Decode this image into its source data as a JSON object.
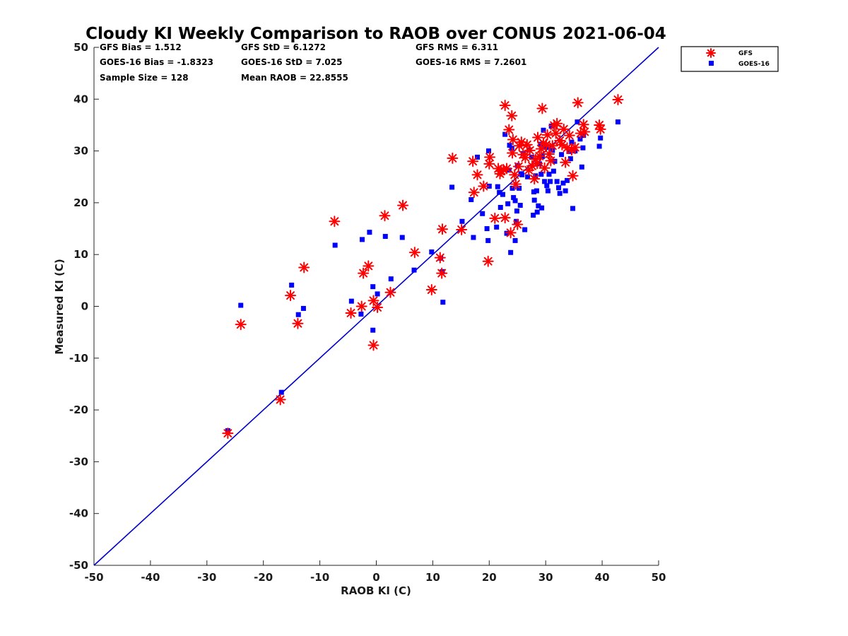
{
  "chart_data": {
    "type": "scatter",
    "title": "Cloudy KI Weekly Comparison to RAOB over CONUS 2021-06-04",
    "xlabel": "RAOB KI (C)",
    "ylabel": "Measured KI (C)",
    "xlim": [
      -50,
      50
    ],
    "ylim": [
      -50,
      50
    ],
    "xticks": [
      "-50",
      "-40",
      "-30",
      "-20",
      "-10",
      "0",
      "10",
      "20",
      "30",
      "40",
      "50"
    ],
    "yticks": [
      "-50",
      "-40",
      "-30",
      "-20",
      "-10",
      "0",
      "10",
      "20",
      "30",
      "40",
      "50"
    ],
    "grid": false,
    "legend_position": "outside top-right",
    "reference_line": "y = x",
    "colors": {
      "gfs": "#ff0000",
      "goes": "#0000ff",
      "line": "#0000cc"
    },
    "stats": {
      "gfs_bias": "GFS Bias = 1.512",
      "gfs_std": "GFS StD = 6.1272",
      "gfs_rms": "GFS RMS = 6.311",
      "goes_bias": "GOES-16 Bias = -1.8323",
      "goes_std": "GOES-16 StD = 7.025",
      "goes_rms": "GOES-16 RMS = 7.2601",
      "sample_size": "Sample Size = 128",
      "mean_raob": "Mean RAOB = 22.8555"
    },
    "series": [
      {
        "name": "GFS",
        "marker": "asterisk",
        "color": "#ff0000",
        "points": [
          [
            -26.3,
            -24.5
          ],
          [
            -24,
            -3.5
          ],
          [
            -17,
            -18
          ],
          [
            -15.2,
            2.1
          ],
          [
            -13.9,
            -3.3
          ],
          [
            -12.8,
            7.5
          ],
          [
            -7.4,
            16.4
          ],
          [
            -4.5,
            -1.3
          ],
          [
            -2.6,
            0
          ],
          [
            -2.3,
            6.4
          ],
          [
            -1.4,
            7.8
          ],
          [
            -0.5,
            1.1
          ],
          [
            -0.5,
            -7.5
          ],
          [
            0.2,
            -0.2
          ],
          [
            1.5,
            17.5
          ],
          [
            2.5,
            2.7
          ],
          [
            4.7,
            19.5
          ],
          [
            6.8,
            10.4
          ],
          [
            9.8,
            3.2
          ],
          [
            11.3,
            9.4
          ],
          [
            11.6,
            6.4
          ],
          [
            11.7,
            14.9
          ],
          [
            15.1,
            14.8
          ],
          [
            13.5,
            28.6
          ],
          [
            17.1,
            28
          ],
          [
            17.3,
            22
          ],
          [
            17.9,
            25.4
          ],
          [
            19,
            23.2
          ],
          [
            20,
            27.5
          ],
          [
            20.1,
            28.8
          ],
          [
            19.8,
            8.7
          ],
          [
            21,
            17
          ],
          [
            21.6,
            26.6
          ],
          [
            21.9,
            25.6
          ],
          [
            22.1,
            26.1
          ],
          [
            22.5,
            26.4
          ],
          [
            22.8,
            38.8
          ],
          [
            22.8,
            17.1
          ],
          [
            23.1,
            26.6
          ],
          [
            23.5,
            34.1
          ],
          [
            23.8,
            14.2
          ],
          [
            24,
            36.8
          ],
          [
            24.1,
            29.6
          ],
          [
            24.2,
            32.2
          ],
          [
            24.5,
            25.4
          ],
          [
            24.7,
            23.6
          ],
          [
            25,
            15.8
          ],
          [
            25.2,
            27
          ],
          [
            25.3,
            31
          ],
          [
            25.7,
            31.7
          ],
          [
            26,
            29.3
          ],
          [
            26.4,
            28.7
          ],
          [
            26.7,
            31.2
          ],
          [
            27,
            26.3
          ],
          [
            27.2,
            30.1
          ],
          [
            27.6,
            27.1
          ],
          [
            28,
            24.6
          ],
          [
            28.2,
            28.4
          ],
          [
            28.5,
            27.6
          ],
          [
            28.6,
            32.6
          ],
          [
            28.9,
            29
          ],
          [
            29.2,
            30.4
          ],
          [
            29.4,
            38.2
          ],
          [
            29.6,
            31.5
          ],
          [
            29.8,
            26.7
          ],
          [
            30.1,
            31.2
          ],
          [
            30.3,
            33.1
          ],
          [
            30.6,
            29.4
          ],
          [
            30.9,
            28.1
          ],
          [
            31.2,
            31
          ],
          [
            31.5,
            34.9
          ],
          [
            31.8,
            33.4
          ],
          [
            32,
            35.3
          ],
          [
            32.5,
            32
          ],
          [
            32.9,
            31.2
          ],
          [
            33.2,
            34.2
          ],
          [
            33.5,
            27.8
          ],
          [
            33.8,
            30.6
          ],
          [
            34.2,
            33
          ],
          [
            34.6,
            30.2
          ],
          [
            34.8,
            25.2
          ],
          [
            35.2,
            30.7
          ],
          [
            35.7,
            39.3
          ],
          [
            36.2,
            33.4
          ],
          [
            36.7,
            35.1
          ],
          [
            36.9,
            33.7
          ],
          [
            39.5,
            35
          ],
          [
            39.7,
            34.2
          ],
          [
            42.8,
            39.9
          ]
        ]
      },
      {
        "name": "GOES-16",
        "marker": "square",
        "color": "#0000ff",
        "points": [
          [
            -26.3,
            -24
          ],
          [
            -24,
            0.2
          ],
          [
            -16.8,
            -16.6
          ],
          [
            -15,
            4.1
          ],
          [
            -13.8,
            -1.6
          ],
          [
            -12.9,
            -0.4
          ],
          [
            -7.3,
            11.8
          ],
          [
            -4.4,
            1
          ],
          [
            -2.7,
            -1.5
          ],
          [
            -2.5,
            12.9
          ],
          [
            -1.2,
            14.3
          ],
          [
            -0.6,
            3.8
          ],
          [
            -0.6,
            -4.6
          ],
          [
            0.2,
            2.4
          ],
          [
            1.6,
            13.5
          ],
          [
            2.6,
            5.3
          ],
          [
            4.6,
            13.3
          ],
          [
            6.7,
            7
          ],
          [
            9.8,
            10.5
          ],
          [
            11.4,
            9.3
          ],
          [
            11.7,
            6.7
          ],
          [
            11.8,
            0.8
          ],
          [
            13.4,
            23
          ],
          [
            15.2,
            16.4
          ],
          [
            16.8,
            20.6
          ],
          [
            17.2,
            13.3
          ],
          [
            17.9,
            28.8
          ],
          [
            18.8,
            17.9
          ],
          [
            19.6,
            15
          ],
          [
            19.8,
            12.7
          ],
          [
            19.9,
            30
          ],
          [
            20,
            23.2
          ],
          [
            21.3,
            15.3
          ],
          [
            21.5,
            23.1
          ],
          [
            21.8,
            22
          ],
          [
            22,
            19.1
          ],
          [
            22.4,
            21.6
          ],
          [
            22.8,
            33.2
          ],
          [
            23.1,
            14.1
          ],
          [
            23.3,
            19.8
          ],
          [
            23.5,
            26.3
          ],
          [
            23.6,
            31.1
          ],
          [
            23.8,
            10.4
          ],
          [
            24,
            30.5
          ],
          [
            24.1,
            22.8
          ],
          [
            24.3,
            21
          ],
          [
            24.6,
            20.4
          ],
          [
            24.6,
            12.7
          ],
          [
            24.8,
            16.4
          ],
          [
            24.9,
            18.4
          ],
          [
            25,
            27.2
          ],
          [
            25.3,
            22.8
          ],
          [
            25.5,
            19.5
          ],
          [
            25.6,
            25.6
          ],
          [
            25.8,
            25.4
          ],
          [
            26,
            29.5
          ],
          [
            26.3,
            14.8
          ],
          [
            26.8,
            25
          ],
          [
            27.1,
            30.2
          ],
          [
            27.5,
            28.8
          ],
          [
            27.8,
            17.6
          ],
          [
            27.9,
            22.1
          ],
          [
            28,
            20.5
          ],
          [
            28.2,
            25.2
          ],
          [
            28.4,
            22.3
          ],
          [
            28.5,
            18.2
          ],
          [
            28.7,
            19.4
          ],
          [
            28.9,
            27.5
          ],
          [
            29.1,
            31.3
          ],
          [
            29.2,
            25.5
          ],
          [
            29.3,
            19
          ],
          [
            29.4,
            28.9
          ],
          [
            29.6,
            34
          ],
          [
            29.8,
            24.1
          ],
          [
            30,
            30.7
          ],
          [
            30.2,
            23.3
          ],
          [
            30.4,
            22.3
          ],
          [
            30.6,
            25.5
          ],
          [
            30.8,
            24.1
          ],
          [
            31,
            34.8
          ],
          [
            31.2,
            30.1
          ],
          [
            31.4,
            26.1
          ],
          [
            31.6,
            28
          ],
          [
            32,
            24.1
          ],
          [
            32.3,
            22.9
          ],
          [
            32.5,
            21.8
          ],
          [
            32.8,
            29.3
          ],
          [
            33.1,
            23.8
          ],
          [
            33.5,
            22.3
          ],
          [
            33.8,
            24.3
          ],
          [
            34.1,
            29.9
          ],
          [
            34.4,
            28.5
          ],
          [
            34.6,
            31.7
          ],
          [
            34.8,
            18.9
          ],
          [
            35.2,
            30
          ],
          [
            35.6,
            35.6
          ],
          [
            36.1,
            32.3
          ],
          [
            36.4,
            26.9
          ],
          [
            36.6,
            30.6
          ],
          [
            36.7,
            33
          ],
          [
            39.5,
            30.9
          ],
          [
            39.7,
            32.5
          ],
          [
            42.8,
            35.6
          ]
        ]
      }
    ]
  }
}
